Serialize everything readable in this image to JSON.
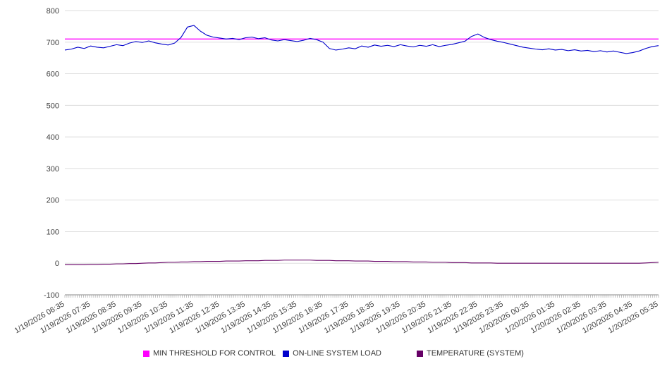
{
  "chart_data": {
    "type": "line",
    "title": "",
    "xlabel": "",
    "ylabel": "",
    "ylim": [
      -100,
      800
    ],
    "ytick_step": 100,
    "grid": "horizontal",
    "legend_position": "bottom",
    "categories": [
      "1/19/2026 06:35",
      "1/19/2026 07:35",
      "1/19/2026 08:35",
      "1/19/2026 09:35",
      "1/19/2026 10:35",
      "1/19/2026 11:35",
      "1/19/2026 12:35",
      "1/19/2026 13:35",
      "1/19/2026 14:35",
      "1/19/2026 15:35",
      "1/19/2026 16:35",
      "1/19/2026 17:35",
      "1/19/2026 18:35",
      "1/19/2026 19:35",
      "1/19/2026 20:35",
      "1/19/2026 21:35",
      "1/19/2026 22:35",
      "1/19/2026 23:35",
      "1/20/2026 00:35",
      "1/20/2026 01:35",
      "1/20/2026 02:35",
      "1/20/2026 03:35",
      "1/20/2026 04:35",
      "1/20/2026 05:35"
    ],
    "points_per_label": 4,
    "series": [
      {
        "name": "MIN THRESHOLD FOR CONTROL",
        "color": "#ff00ff",
        "constant": 710
      },
      {
        "name": "ON-LINE SYSTEM LOAD",
        "color": "#0000cc",
        "values": [
          675,
          678,
          684,
          680,
          688,
          684,
          682,
          687,
          692,
          689,
          697,
          702,
          699,
          704,
          698,
          694,
          691,
          697,
          715,
          748,
          753,
          735,
          722,
          716,
          713,
          710,
          712,
          708,
          714,
          716,
          711,
          714,
          707,
          704,
          708,
          705,
          702,
          706,
          712,
          708,
          700,
          680,
          675,
          678,
          682,
          679,
          688,
          684,
          691,
          687,
          690,
          686,
          692,
          688,
          685,
          690,
          687,
          692,
          686,
          690,
          693,
          698,
          703,
          718,
          726,
          715,
          708,
          703,
          699,
          694,
          689,
          684,
          681,
          678,
          676,
          679,
          675,
          677,
          673,
          676,
          672,
          674,
          670,
          673,
          669,
          672,
          668,
          664,
          667,
          672,
          680,
          686,
          689
        ]
      },
      {
        "name": "TEMPERATURE (SYSTEM)",
        "color": "#660066",
        "values": [
          -5,
          -5,
          -5,
          -5,
          -4,
          -4,
          -3,
          -3,
          -2,
          -2,
          -1,
          -1,
          0,
          1,
          1,
          2,
          3,
          3,
          4,
          4,
          5,
          5,
          6,
          6,
          6,
          7,
          7,
          7,
          8,
          8,
          8,
          9,
          9,
          9,
          10,
          10,
          10,
          10,
          10,
          9,
          9,
          9,
          8,
          8,
          8,
          7,
          7,
          7,
          6,
          6,
          6,
          5,
          5,
          5,
          4,
          4,
          4,
          3,
          3,
          3,
          2,
          2,
          2,
          1,
          1,
          1,
          1,
          0,
          0,
          0,
          0,
          0,
          0,
          0,
          0,
          0,
          0,
          0,
          0,
          0,
          0,
          0,
          0,
          0,
          0,
          0,
          0,
          0,
          0,
          0,
          1,
          2,
          3
        ]
      }
    ]
  }
}
